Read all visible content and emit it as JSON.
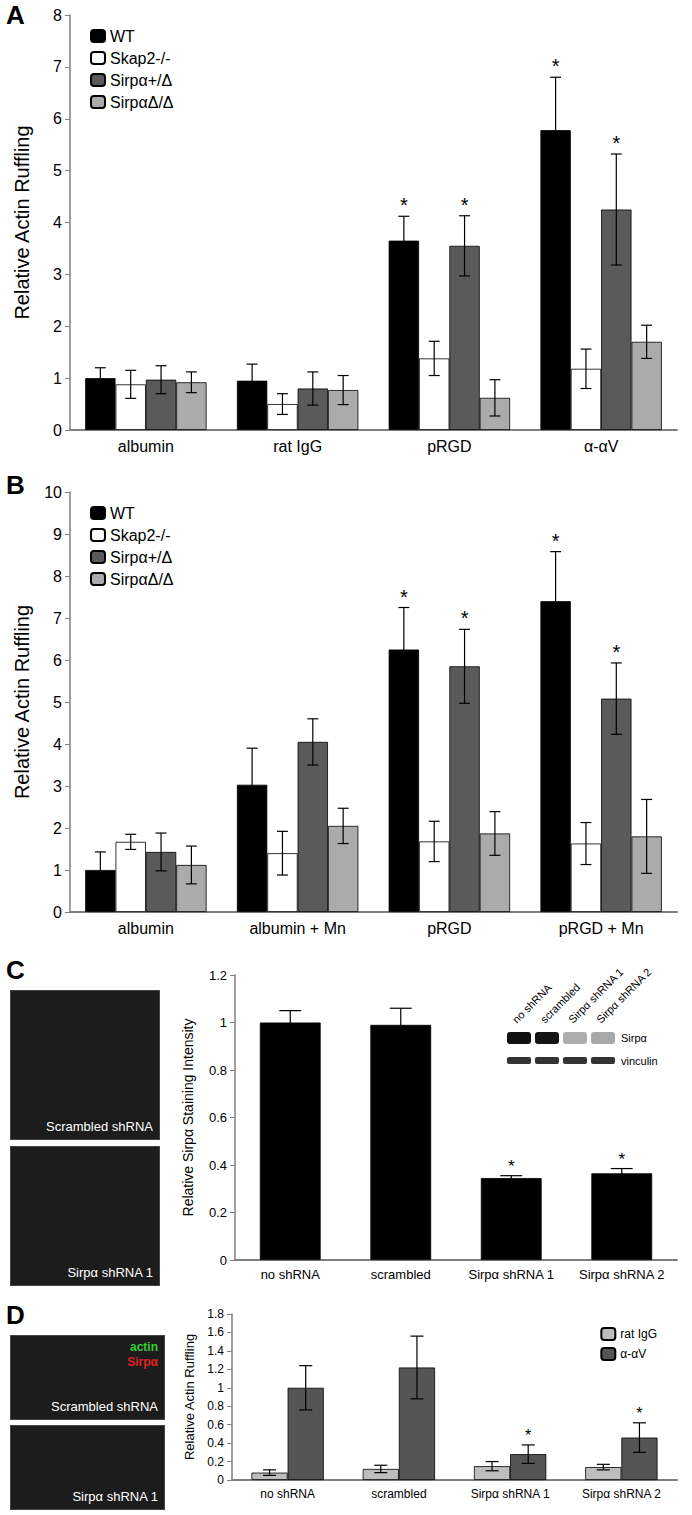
{
  "panel_labels": [
    "A",
    "B",
    "C",
    "D"
  ],
  "chart_data": [
    {
      "type": "bar",
      "y_label": "Relative Actin Ruffling",
      "categories": [
        "albumin",
        "rat IgG",
        "pRGD",
        "α-αV"
      ],
      "series": [
        {
          "name": "WT",
          "color": "#000000",
          "values": [
            1.0,
            0.95,
            3.65,
            5.78
          ],
          "errors": [
            0.2,
            0.32,
            0.47,
            1.02
          ],
          "annotations": [
            null,
            null,
            "*",
            "*"
          ]
        },
        {
          "name": "Skap2-/-",
          "color": "#ffffff",
          "values": [
            0.88,
            0.5,
            1.38,
            1.18
          ],
          "errors": [
            0.27,
            0.2,
            0.33,
            0.38
          ],
          "annotations": [
            null,
            null,
            null,
            null
          ]
        },
        {
          "name": "Sirpα+/Δ",
          "color": "#5a5a5a",
          "values": [
            0.97,
            0.8,
            3.55,
            4.25
          ],
          "errors": [
            0.27,
            0.32,
            0.58,
            1.07
          ],
          "annotations": [
            null,
            null,
            "*",
            "*"
          ]
        },
        {
          "name": "SirpαΔ/Δ",
          "color": "#ababab",
          "values": [
            0.92,
            0.77,
            0.62,
            1.7
          ],
          "errors": [
            0.2,
            0.28,
            0.35,
            0.32
          ],
          "annotations": [
            null,
            null,
            null,
            null
          ]
        }
      ],
      "ylim": [
        0,
        8
      ],
      "yticks": [
        0,
        1,
        2,
        3,
        4,
        5,
        6,
        7,
        8
      ],
      "grid": false,
      "legend": "upper left"
    },
    {
      "type": "bar",
      "y_label": "Relative Actin Ruffling",
      "categories": [
        "albumin",
        "albumin + Mn",
        "pRGD",
        "pRGD + Mn"
      ],
      "series": [
        {
          "name": "WT",
          "color": "#000000",
          "values": [
            1.0,
            3.03,
            6.25,
            7.4
          ],
          "errors": [
            0.43,
            0.87,
            1.0,
            1.18
          ],
          "annotations": [
            null,
            null,
            "*",
            "*"
          ]
        },
        {
          "name": "Skap2-/-",
          "color": "#ffffff",
          "values": [
            1.67,
            1.4,
            1.68,
            1.63
          ],
          "errors": [
            0.18,
            0.52,
            0.48,
            0.5
          ],
          "annotations": [
            null,
            null,
            null,
            null
          ]
        },
        {
          "name": "Sirpα+/Δ",
          "color": "#5a5a5a",
          "values": [
            1.43,
            4.05,
            5.85,
            5.08
          ],
          "errors": [
            0.45,
            0.55,
            0.88,
            0.85
          ],
          "annotations": [
            null,
            null,
            "*",
            "*"
          ]
        },
        {
          "name": "SirpαΔ/Δ",
          "color": "#ababab",
          "values": [
            1.12,
            2.05,
            1.87,
            1.8
          ],
          "errors": [
            0.45,
            0.42,
            0.52,
            0.88
          ],
          "annotations": [
            null,
            null,
            null,
            null
          ]
        }
      ],
      "ylim": [
        0,
        10
      ],
      "yticks": [
        0,
        1,
        2,
        3,
        4,
        5,
        6,
        7,
        8,
        9,
        10
      ],
      "grid": false,
      "legend": "upper left"
    },
    {
      "type": "bar",
      "y_label": "Relative Sirpα Staining Intensity",
      "categories": [
        "no shRNA",
        "scrambled",
        "Sirpα shRNA 1",
        "Sirpα shRNA 2"
      ],
      "values": [
        1.0,
        0.99,
        0.345,
        0.365
      ],
      "errors": [
        0.05,
        0.07,
        0.01,
        0.02
      ],
      "annotations": [
        null,
        null,
        "*",
        "*"
      ],
      "color": "#000000",
      "ylim": [
        0,
        1.2
      ],
      "yticks": [
        0,
        0.2,
        0.4,
        0.6,
        0.8,
        1,
        1.2
      ],
      "grid": false,
      "micrographs": [
        "Scrambled shRNA",
        "Sirpα shRNA 1"
      ],
      "blot": {
        "lanes": [
          "no shRNA",
          "scrambled",
          "Sirpα shRNA 1",
          "Sirpα shRNA 2"
        ],
        "bands": [
          "Sirpα",
          "vinculin"
        ]
      }
    },
    {
      "type": "bar",
      "y_label": "Relative Actin Ruffling",
      "categories": [
        "no shRNA",
        "scrambled",
        "Sirpα shRNA 1",
        "Sirpα shRNA 2"
      ],
      "series": [
        {
          "name": "rat IgG",
          "color": "#bdbdbd",
          "values": [
            0.08,
            0.12,
            0.15,
            0.14
          ],
          "errors": [
            0.03,
            0.04,
            0.05,
            0.03
          ],
          "annotations": [
            null,
            null,
            null,
            null
          ]
        },
        {
          "name": "α-αV",
          "color": "#555555",
          "values": [
            1.0,
            1.22,
            0.28,
            0.46
          ],
          "errors": [
            0.24,
            0.34,
            0.1,
            0.16
          ],
          "annotations": [
            null,
            null,
            "*",
            "*"
          ]
        }
      ],
      "ylim": [
        0,
        1.8
      ],
      "yticks": [
        0,
        0.2,
        0.4,
        0.6,
        0.8,
        1,
        1.2,
        1.4,
        1.6,
        1.8
      ],
      "grid": false,
      "legend": "upper right",
      "micrographs": [
        "Scrambled shRNA",
        "Sirpα shRNA 1"
      ],
      "channels": [
        {
          "name": "actin",
          "color": "#33cc33"
        },
        {
          "name": "Sirpα",
          "color": "#e02020"
        }
      ]
    }
  ]
}
